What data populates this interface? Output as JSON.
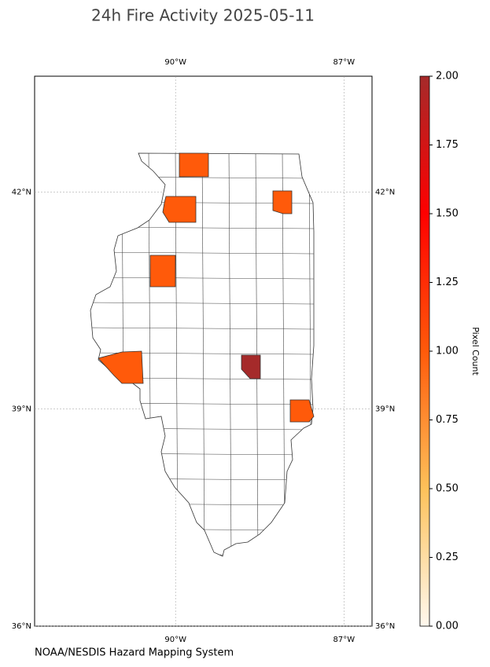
{
  "chart_data": {
    "type": "map",
    "title": "24h Fire Activity 2025-05-11",
    "source": "NOAA/NESDIS Hazard Mapping System",
    "xlim": [
      -92.51,
      -86.5
    ],
    "ylim": [
      36,
      43.6
    ],
    "xticks": [
      {
        "value": -90,
        "label": "90°W"
      },
      {
        "value": -87,
        "label": "87°W"
      }
    ],
    "yticks": [
      {
        "value": 42,
        "label": "42°N"
      },
      {
        "value": 39,
        "label": "39°N"
      },
      {
        "value": 36,
        "label": "36°N"
      }
    ],
    "grid": true,
    "fire_counts": [
      1,
      1,
      1,
      1,
      1,
      1,
      2
    ],
    "colorbar": {
      "label": "Pixel Count",
      "clim": [
        0,
        2
      ],
      "colormap": [
        "#fff8ee",
        "#fdc15a",
        "#ff5a0a",
        "#ff0000",
        "#a52a2a"
      ],
      "ticks": [
        {
          "value": 0,
          "label": "0.00"
        },
        {
          "value": 0.25,
          "label": "0.25"
        },
        {
          "value": 0.5,
          "label": "0.50"
        },
        {
          "value": 0.75,
          "label": "0.75"
        },
        {
          "value": 1,
          "label": "1.00"
        },
        {
          "value": 1.25,
          "label": "1.25"
        },
        {
          "value": 1.5,
          "label": "1.50"
        },
        {
          "value": 1.75,
          "label": "1.75"
        },
        {
          "value": 2,
          "label": "2.00"
        }
      ]
    }
  }
}
